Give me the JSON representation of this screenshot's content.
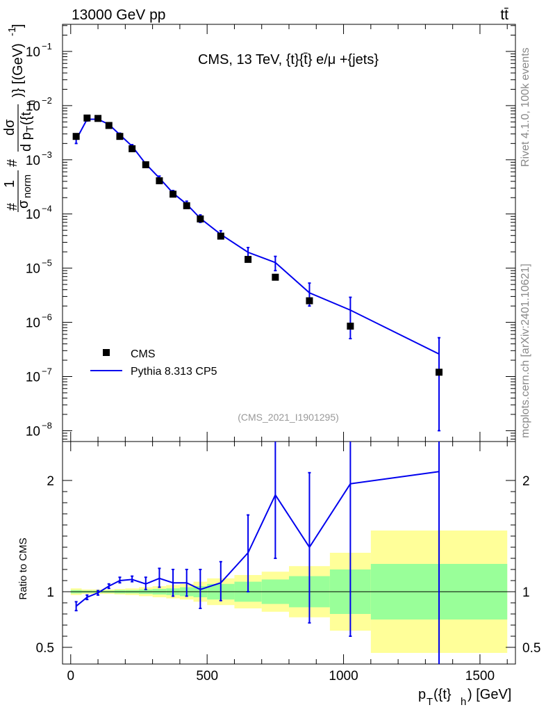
{
  "header": {
    "left": "13000 GeV pp",
    "right": "tt̄"
  },
  "side_labels": {
    "top": "Rivet 4.1.0,  100k events",
    "bottom": "mcplots.cern.ch [arXiv:2401.10621]"
  },
  "chart_data": {
    "type": "scatter",
    "title": "CMS, 13 TeV, {t}{t̄} e/μ +{jets}",
    "analysis_id": "(CMS_2021_I1901295)",
    "xlabel": "p_T({t}_h) [GeV]",
    "xlabel_parts": {
      "p": "p",
      "t_sub": "T",
      "open": "({t}",
      "h_sub": "h",
      "close": ") [GeV]"
    },
    "ylabel": "# 1/σ_norm # dσ/d p_T({t}_h)} [(GeV)^-1]",
    "ylabel_parts": {
      "hash1": "#",
      "one": "1",
      "sigma_norm": "σ",
      "norm_sub": "norm",
      "hash2": "#",
      "dsigma": "dσ",
      "dpt": "d p",
      "T_sub": "T",
      "tfrag": "({t",
      "h_sub": "h",
      "units": ")} [(GeV)",
      "units_exp": "-1",
      "units_close": "]"
    },
    "ratio_ylabel": "Ratio to CMS",
    "xlim": [
      -30,
      1630
    ],
    "ylim_log": [
      -8.2,
      -0.5
    ],
    "ratio_ylim": [
      0.35,
      2.35
    ],
    "x_ticks": [
      0,
      500,
      1000,
      1500
    ],
    "x_tick_labels": [
      "0",
      "500",
      "1000",
      "1500"
    ],
    "y_ticks": [
      {
        "base": "10",
        "exp": "−1",
        "value": -1
      },
      {
        "base": "10",
        "exp": "−2",
        "value": -2
      },
      {
        "base": "10",
        "exp": "−3",
        "value": -3
      },
      {
        "base": "10",
        "exp": "−4",
        "value": -4
      },
      {
        "base": "10",
        "exp": "−5",
        "value": -5
      },
      {
        "base": "10",
        "exp": "−6",
        "value": -6
      },
      {
        "base": "10",
        "exp": "−7",
        "value": -7
      },
      {
        "base": "10",
        "exp": "−8",
        "value": -8
      }
    ],
    "ratio_ticks": [
      {
        "value": 0.5,
        "label": "0.5"
      },
      {
        "value": 1,
        "label": "1"
      },
      {
        "value": 2,
        "label": "2"
      }
    ],
    "legend": {
      "position": "bottom-left",
      "entries": [
        {
          "label": "CMS",
          "style": "marker",
          "color": "#000000"
        },
        {
          "label": "Pythia 8.313 CP5",
          "style": "line",
          "color": "#0000ee"
        }
      ]
    },
    "bins": [
      [
        0,
        40
      ],
      [
        40,
        80
      ],
      [
        80,
        120
      ],
      [
        120,
        160
      ],
      [
        160,
        200
      ],
      [
        200,
        250
      ],
      [
        250,
        300
      ],
      [
        300,
        350
      ],
      [
        350,
        400
      ],
      [
        400,
        450
      ],
      [
        450,
        500
      ],
      [
        500,
        600
      ],
      [
        600,
        700
      ],
      [
        700,
        800
      ],
      [
        800,
        950
      ],
      [
        950,
        1100
      ],
      [
        1100,
        1600
      ]
    ],
    "cms": {
      "x": [
        20,
        60,
        100,
        140,
        180,
        225,
        275,
        325,
        375,
        425,
        475,
        550,
        650,
        750,
        875,
        1025,
        1350
      ],
      "y": [
        0.0027,
        0.0059,
        0.0058,
        0.0043,
        0.0027,
        0.0016,
        0.00081,
        0.00041,
        0.000232,
        0.000142,
        8.1e-05,
        3.9e-05,
        1.45e-05,
        6.8e-06,
        2.5e-06,
        8.5e-07,
        1.2e-07
      ],
      "color": "#000000"
    },
    "pythia": {
      "x": [
        20,
        60,
        100,
        140,
        180,
        225,
        275,
        325,
        375,
        425,
        475,
        550,
        650,
        750,
        875,
        1025,
        1350
      ],
      "y": [
        0.00235,
        0.0056,
        0.0056,
        0.0045,
        0.0029,
        0.00178,
        0.00084,
        0.00046,
        0.000243,
        0.000152,
        8.3e-05,
        4.2e-05,
        1.96e-05,
        1.27e-05,
        3.5e-06,
        1.68e-06,
        2.6e-07
      ],
      "y_err_low": [
        0.002,
        0.0052,
        0.0053,
        0.0043,
        0.0027,
        0.00165,
        0.00077,
        0.00041,
        0.000215,
        0.000133,
        7e-05,
        3.5e-05,
        1.5e-05,
        9e-06,
        2e-06,
        5e-07,
        1e-08
      ],
      "y_err_high": [
        0.0027,
        0.006,
        0.0059,
        0.0047,
        0.0031,
        0.0019,
        0.00091,
        0.0005,
        0.000271,
        0.000172,
        9.6e-05,
        4.9e-05,
        2.4e-05,
        1.65e-05,
        5.3e-06,
        2.9e-06,
        5.2e-07
      ],
      "ratio": [
        0.87,
        0.95,
        0.99,
        1.05,
        1.1,
        1.11,
        1.07,
        1.12,
        1.08,
        1.08,
        1.02,
        1.08,
        1.35,
        1.87,
        1.4,
        1.97,
        2.08
      ],
      "ratio_err_low": [
        0.83,
        0.93,
        0.97,
        1.03,
        1.08,
        1.09,
        1.02,
        1.04,
        0.96,
        0.96,
        0.85,
        0.92,
        1.0,
        1.3,
        0.72,
        0.6,
        0.3
      ],
      "ratio_err_high": [
        0.91,
        0.97,
        1.01,
        1.07,
        1.13,
        1.14,
        1.13,
        1.21,
        1.2,
        1.2,
        1.2,
        1.27,
        1.69,
        2.5,
        2.07,
        3.0,
        3.0
      ],
      "color": "#0000ee"
    },
    "uncertainty_bands": {
      "inner_color": "#99ff99",
      "outer_color": "#ffff99",
      "inner_rel": [
        0.015,
        0.01,
        0.01,
        0.01,
        0.015,
        0.015,
        0.02,
        0.025,
        0.03,
        0.04,
        0.05,
        0.07,
        0.09,
        0.11,
        0.14,
        0.2,
        0.25
      ],
      "outer_rel": [
        0.03,
        0.02,
        0.02,
        0.02,
        0.025,
        0.03,
        0.04,
        0.05,
        0.06,
        0.07,
        0.09,
        0.12,
        0.15,
        0.18,
        0.23,
        0.35,
        0.55
      ]
    }
  }
}
